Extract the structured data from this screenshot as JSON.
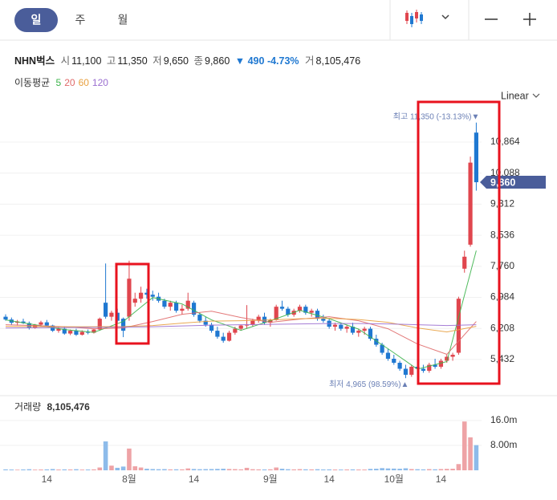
{
  "tabs": [
    "일",
    "주",
    "월"
  ],
  "header": {
    "name": "NHN벅스",
    "fields": [
      {
        "label": "시",
        "value": "11,100"
      },
      {
        "label": "고",
        "value": "11,350"
      },
      {
        "label": "저",
        "value": "9,650"
      },
      {
        "label": "종",
        "value": "9,860"
      }
    ],
    "change": "▼ 490 -4.73%",
    "volume_label": "거",
    "volume": "8,105,476"
  },
  "scale_label": "Linear",
  "chart_data": [
    {
      "type": "candlestick",
      "moving_average_label": "이동평균",
      "up_color": "#e0464e",
      "down_color": "#1f78d1",
      "grid": true,
      "ylim": [
        4588,
        11806
      ],
      "yticks": [
        {
          "value": 10864,
          "label": "10,864"
        },
        {
          "value": 10088,
          "label": "10,088"
        },
        {
          "value": 9312,
          "label": "9,312"
        },
        {
          "value": 8536,
          "label": "8,536"
        },
        {
          "value": 7760,
          "label": "7,760"
        },
        {
          "value": 6984,
          "label": "6,984"
        },
        {
          "value": 6208,
          "label": "6,208"
        },
        {
          "value": 5432,
          "label": "5,432"
        }
      ],
      "current_price": {
        "value": 9860,
        "label": "9,860"
      },
      "high_annotation": "최고 11,350 (-13.13%)▼",
      "low_annotation": "최저 4,965 (98.59%)▲",
      "open": [
        6500,
        6430,
        6350,
        6380,
        6340,
        6220,
        6300,
        6360,
        6280,
        6150,
        6200,
        6080,
        6150,
        6050,
        6120,
        6100,
        6180,
        6850,
        6500,
        6600,
        6450,
        6500,
        6850,
        6950,
        7100,
        7050,
        7000,
        6900,
        6750,
        6850,
        6650,
        6700,
        6850,
        6550,
        6400,
        6300,
        6150,
        6000,
        5900,
        6100,
        6200,
        6280,
        6300,
        6400,
        6500,
        6350,
        6420,
        6750,
        6700,
        6550,
        6650,
        6750,
        6600,
        6650,
        6450,
        6400,
        6250,
        6300,
        6200,
        6250,
        6100,
        6150,
        6200,
        5950,
        5800,
        5600,
        5450,
        5350,
        5200,
        5050,
        5250,
        5200,
        5150,
        5300,
        5250,
        5400,
        5500,
        5600,
        7700,
        8300,
        11100
      ],
      "high": [
        6560,
        6480,
        6420,
        6450,
        6380,
        6320,
        6400,
        6420,
        6300,
        6250,
        6260,
        6180,
        6200,
        6160,
        6180,
        6200,
        6480,
        7830,
        6650,
        6700,
        6480,
        7900,
        7100,
        7250,
        7200,
        7150,
        7100,
        6950,
        6900,
        6900,
        6800,
        7100,
        6900,
        6600,
        6500,
        6350,
        6250,
        6100,
        6150,
        6250,
        6300,
        6790,
        6450,
        6550,
        6600,
        6450,
        6800,
        6900,
        6750,
        6700,
        6800,
        6800,
        6700,
        6700,
        6550,
        6450,
        6350,
        6350,
        6300,
        6350,
        6200,
        6250,
        6250,
        6050,
        5850,
        5700,
        5550,
        5400,
        5300,
        5300,
        5350,
        5300,
        5350,
        5450,
        5450,
        5550,
        5600,
        7000,
        8150,
        10500,
        11350
      ],
      "low": [
        6400,
        6300,
        6280,
        6320,
        6180,
        6200,
        6260,
        6250,
        6120,
        6100,
        6050,
        6040,
        6020,
        6030,
        6060,
        6080,
        6150,
        6450,
        6400,
        6350,
        5990,
        6400,
        6750,
        6850,
        6950,
        6900,
        6850,
        6700,
        6650,
        6600,
        6550,
        6650,
        6500,
        6350,
        6250,
        6100,
        5950,
        5850,
        5880,
        6050,
        6150,
        6200,
        6250,
        6350,
        6300,
        6250,
        6400,
        6650,
        6500,
        6500,
        6600,
        6550,
        6500,
        6400,
        6350,
        6200,
        6150,
        6150,
        6100,
        6050,
        6000,
        6050,
        5900,
        5750,
        5550,
        5400,
        5300,
        5150,
        4965,
        5000,
        5150,
        5100,
        5100,
        5200,
        5200,
        5350,
        5400,
        5550,
        7600,
        8250,
        9650
      ],
      "close": [
        6430,
        6350,
        6380,
        6340,
        6220,
        6300,
        6360,
        6280,
        6150,
        6200,
        6080,
        6150,
        6050,
        6120,
        6100,
        6180,
        6450,
        6500,
        6600,
        6400,
        6150,
        7450,
        6950,
        7100,
        7050,
        7000,
        6900,
        6750,
        6850,
        6650,
        6700,
        6900,
        6550,
        6400,
        6300,
        6150,
        6000,
        5900,
        6100,
        6200,
        6280,
        6300,
        6400,
        6500,
        6350,
        6420,
        6750,
        6700,
        6550,
        6650,
        6750,
        6600,
        6650,
        6450,
        6400,
        6250,
        6300,
        6200,
        6250,
        6100,
        6150,
        6200,
        5950,
        5800,
        5600,
        5450,
        5350,
        5200,
        5050,
        5250,
        5200,
        5150,
        5300,
        5250,
        5400,
        5500,
        5550,
        6950,
        8000,
        10350,
        9860
      ],
      "series": [
        {
          "name": "5",
          "color": "#3cb44b",
          "x": [
            0,
            5,
            10,
            15,
            20,
            25,
            30,
            35,
            40,
            45,
            50,
            55,
            60,
            65,
            70,
            75,
            80
          ],
          "values": [
            6420,
            6300,
            6180,
            6110,
            6380,
            6980,
            6820,
            6420,
            6160,
            6400,
            6660,
            6450,
            6190,
            5700,
            5190,
            5380,
            8150
          ]
        },
        {
          "name": "20",
          "color": "#e06a6a",
          "x": [
            0,
            5,
            10,
            15,
            20,
            25,
            30,
            35,
            40,
            45,
            50,
            55,
            60,
            65,
            70,
            75,
            80
          ],
          "values": [
            6300,
            6280,
            6250,
            6200,
            6220,
            6380,
            6560,
            6640,
            6480,
            6360,
            6440,
            6500,
            6400,
            6200,
            5820,
            5560,
            6380
          ]
        },
        {
          "name": "60",
          "color": "#e8a040",
          "x": [
            0,
            5,
            10,
            15,
            20,
            25,
            30,
            35,
            40,
            45,
            50,
            55,
            60,
            65,
            70,
            75,
            80
          ],
          "values": [
            6260,
            6255,
            6250,
            6250,
            6255,
            6280,
            6340,
            6390,
            6400,
            6420,
            6450,
            6460,
            6430,
            6360,
            6220,
            6120,
            6260
          ]
        },
        {
          "name": "120",
          "color": "#9b6fd0",
          "x": [
            0,
            5,
            10,
            15,
            20,
            25,
            30,
            35,
            40,
            45,
            50,
            55,
            60,
            65,
            70,
            75,
            80
          ],
          "values": [
            6220,
            6225,
            6230,
            6235,
            6240,
            6250,
            6270,
            6290,
            6300,
            6310,
            6320,
            6330,
            6330,
            6320,
            6300,
            6280,
            6300
          ]
        }
      ]
    },
    {
      "type": "bar",
      "title": "거래량",
      "title_value": "8,105,476",
      "up_color": "#eea3a6",
      "down_color": "#8dbbea",
      "ylim": [
        0,
        23500000
      ],
      "yticks": [
        {
          "value": 16000000,
          "label": "16.0m"
        },
        {
          "value": 8000000,
          "label": "8.00m"
        }
      ],
      "categories": [
        null,
        null,
        null,
        null,
        null,
        null,
        null,
        "14",
        null,
        null,
        null,
        null,
        null,
        null,
        null,
        null,
        null,
        null,
        null,
        null,
        null,
        "8월",
        null,
        null,
        null,
        null,
        null,
        null,
        null,
        null,
        null,
        null,
        "14",
        null,
        null,
        null,
        null,
        null,
        null,
        null,
        null,
        null,
        null,
        null,
        null,
        "9월",
        null,
        null,
        null,
        null,
        null,
        null,
        null,
        null,
        null,
        "14",
        null,
        null,
        null,
        null,
        null,
        null,
        null,
        null,
        null,
        null,
        "10월",
        null,
        null,
        null,
        null,
        null,
        null,
        null,
        "14",
        null,
        null,
        null,
        null,
        null,
        null
      ],
      "values": [
        300000,
        250000,
        200000,
        280000,
        350000,
        220000,
        260000,
        300000,
        400000,
        250000,
        300000,
        280000,
        350000,
        230000,
        260000,
        300000,
        900000,
        9300000,
        1500000,
        800000,
        1200000,
        7000000,
        1300000,
        900000,
        500000,
        400000,
        350000,
        380000,
        300000,
        320000,
        300000,
        600000,
        420000,
        350000,
        380000,
        400000,
        450000,
        500000,
        420000,
        380000,
        300000,
        800000,
        350000,
        300000,
        280000,
        320000,
        900000,
        500000,
        350000,
        300000,
        380000,
        320000,
        300000,
        350000,
        280000,
        300000,
        260000,
        240000,
        280000,
        300000,
        260000,
        250000,
        450000,
        500000,
        700000,
        600000,
        550000,
        500000,
        650000,
        400000,
        350000,
        300000,
        380000,
        320000,
        400000,
        450000,
        500000,
        2000000,
        15700000,
        10600000,
        8105476
      ]
    }
  ]
}
